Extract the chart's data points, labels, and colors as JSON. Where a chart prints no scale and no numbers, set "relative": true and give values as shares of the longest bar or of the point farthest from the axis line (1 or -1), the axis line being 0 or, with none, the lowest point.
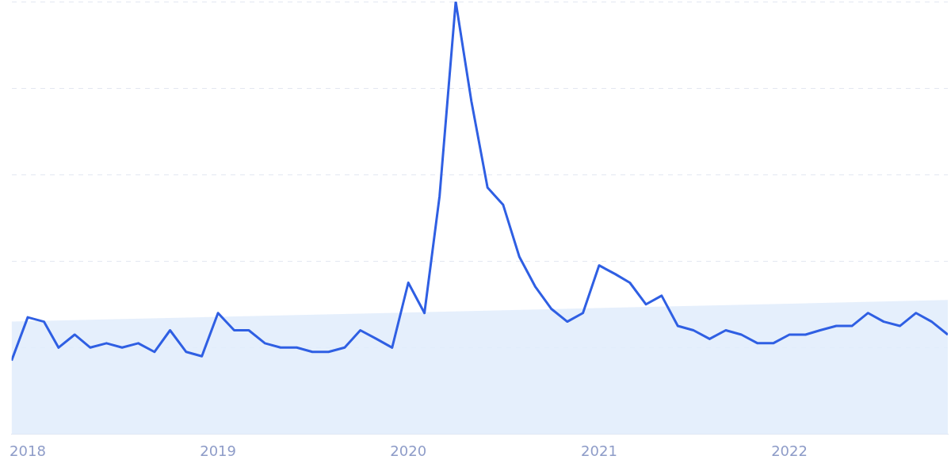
{
  "chart_data": {
    "type": "line",
    "relative": true,
    "grid": "y",
    "legend": false,
    "marker": "none",
    "line_style": "solid",
    "x": [
      "2017-12",
      "2018-01",
      "2018-02",
      "2018-03",
      "2018-04",
      "2018-05",
      "2018-06",
      "2018-07",
      "2018-08",
      "2018-09",
      "2018-10",
      "2018-11",
      "2018-12",
      "2019-01",
      "2019-02",
      "2019-03",
      "2019-04",
      "2019-05",
      "2019-06",
      "2019-07",
      "2019-08",
      "2019-09",
      "2019-10",
      "2019-11",
      "2019-12",
      "2020-01",
      "2020-02",
      "2020-03",
      "2020-04",
      "2020-05",
      "2020-06",
      "2020-07",
      "2020-08",
      "2020-09",
      "2020-10",
      "2020-11",
      "2020-12",
      "2021-01",
      "2021-02",
      "2021-03",
      "2021-04",
      "2021-05",
      "2021-06",
      "2021-07",
      "2021-08",
      "2021-09",
      "2021-10",
      "2021-11",
      "2021-12",
      "2022-01",
      "2022-02",
      "2022-03",
      "2022-04",
      "2022-05",
      "2022-06",
      "2022-07",
      "2022-08",
      "2022-09",
      "2022-10",
      "2022-11"
    ],
    "xlim": [
      "2017-12",
      "2022-11"
    ],
    "xticks": [
      "2018",
      "2019",
      "2020",
      "2021",
      "2022"
    ],
    "series": [
      {
        "type": "area",
        "color": "#e1ecfb",
        "x": [
          "2017-12",
          "2022-11"
        ],
        "values": [
          0.26,
          0.31
        ]
      },
      {
        "color": "#2f5fe3",
        "values": [
          0.17,
          0.27,
          0.26,
          0.2,
          0.23,
          0.2,
          0.21,
          0.2,
          0.21,
          0.19,
          0.24,
          0.19,
          0.18,
          0.28,
          0.24,
          0.24,
          0.21,
          0.2,
          0.2,
          0.19,
          0.19,
          0.2,
          0.24,
          0.22,
          0.2,
          0.35,
          0.28,
          0.55,
          1,
          0.77,
          0.57,
          0.53,
          0.41,
          0.34,
          0.29,
          0.26,
          0.28,
          0.39,
          0.37,
          0.35,
          0.3,
          0.32,
          0.25,
          0.24,
          0.22,
          0.24,
          0.23,
          0.21,
          0.21,
          0.23,
          0.23,
          0.24,
          0.25,
          0.25,
          0.28,
          0.26,
          0.25,
          0.28,
          0.26,
          0.23
        ]
      }
    ]
  }
}
